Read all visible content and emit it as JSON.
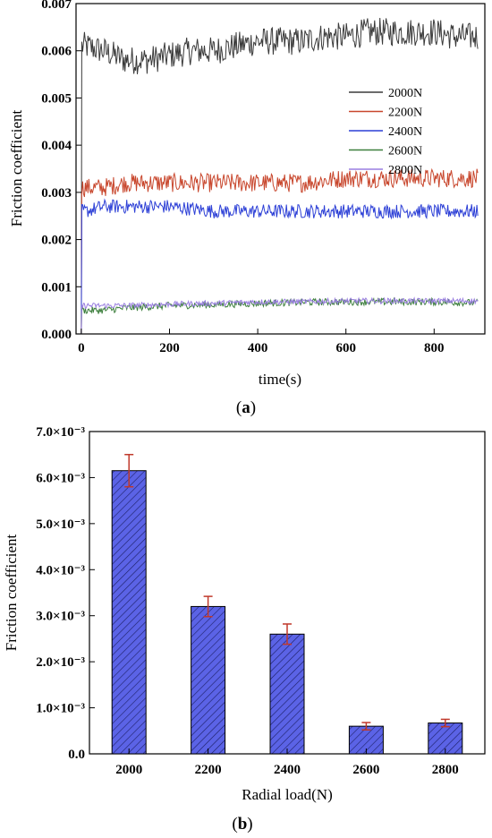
{
  "chart_data": [
    {
      "panel_label": "a",
      "type": "line",
      "title": "",
      "xlabel": "time(s)",
      "ylabel": "Friction coefficient",
      "xlim": [
        0,
        900
      ],
      "ylim": [
        0,
        0.007
      ],
      "x_ticks": [
        "0",
        "200",
        "400",
        "600",
        "800"
      ],
      "y_ticks": [
        "0.000",
        "0.001",
        "0.002",
        "0.003",
        "0.004",
        "0.005",
        "0.006",
        "0.007"
      ],
      "legend_position": "right-middle",
      "series": [
        {
          "name": "2000N",
          "color": "#3a3a3a",
          "x": [
            0,
            10,
            50,
            100,
            150,
            200,
            250,
            300,
            350,
            400,
            450,
            500,
            550,
            600,
            650,
            700,
            750,
            800,
            850,
            900
          ],
          "y": [
            0.0061,
            0.0061,
            0.006,
            0.0058,
            0.0058,
            0.0059,
            0.006,
            0.006,
            0.0061,
            0.0062,
            0.0062,
            0.0062,
            0.0063,
            0.0063,
            0.0064,
            0.0064,
            0.0064,
            0.0064,
            0.0063,
            0.0063
          ],
          "noise": 0.0006
        },
        {
          "name": "2200N",
          "color": "#c8462c",
          "x": [
            0,
            10,
            50,
            100,
            200,
            300,
            400,
            500,
            600,
            700,
            800,
            900
          ],
          "y": [
            0.0031,
            0.0031,
            0.0031,
            0.0032,
            0.0032,
            0.0032,
            0.0032,
            0.0032,
            0.0033,
            0.0033,
            0.0033,
            0.0033
          ],
          "noise": 0.0004
        },
        {
          "name": "2400N",
          "color": "#2c3fd6",
          "x": [
            0,
            10,
            50,
            100,
            200,
            300,
            400,
            500,
            600,
            700,
            800,
            900
          ],
          "y": [
            0.0026,
            0.0026,
            0.0027,
            0.0027,
            0.0027,
            0.0026,
            0.0026,
            0.0026,
            0.0026,
            0.0026,
            0.0026,
            0.0026
          ],
          "noise": 0.0003
        },
        {
          "name": "2600N",
          "color": "#3d7f3d",
          "x": [
            0,
            10,
            50,
            100,
            200,
            300,
            400,
            500,
            600,
            700,
            800,
            900
          ],
          "y": [
            0.0005,
            0.0005,
            0.0005,
            0.00055,
            0.0006,
            0.00062,
            0.00065,
            0.00067,
            0.00068,
            0.00068,
            0.00068,
            0.00066
          ],
          "noise": 0.00015
        },
        {
          "name": "2800N",
          "color": "#9a7fe0",
          "x": [
            0,
            10,
            50,
            100,
            200,
            300,
            400,
            500,
            600,
            700,
            800,
            900
          ],
          "y": [
            0.0006,
            0.0006,
            0.0006,
            0.0006,
            0.00063,
            0.00065,
            0.00068,
            0.00068,
            0.0007,
            0.0007,
            0.0007,
            0.0007
          ],
          "noise": 0.00012
        }
      ]
    },
    {
      "panel_label": "b",
      "type": "bar",
      "title": "",
      "xlabel": "Radial load(N)",
      "ylabel": "Friction coefficient",
      "ylim": [
        0,
        0.007
      ],
      "y_ticks": [
        "0.0",
        "1.0×10⁻³",
        "2.0×10⁻³",
        "3.0×10⁻³",
        "4.0×10⁻³",
        "5.0×10⁻³",
        "6.0×10⁻³",
        "7.0×10⁻³"
      ],
      "categories": [
        "2000",
        "2200",
        "2400",
        "2600",
        "2800"
      ],
      "values": [
        0.00615,
        0.0032,
        0.0026,
        0.0006,
        0.00067
      ],
      "errors": [
        0.00035,
        0.00022,
        0.00022,
        8e-05,
        8e-05
      ],
      "bar_color": "#5b63e6",
      "error_color": "#c0392b"
    }
  ]
}
